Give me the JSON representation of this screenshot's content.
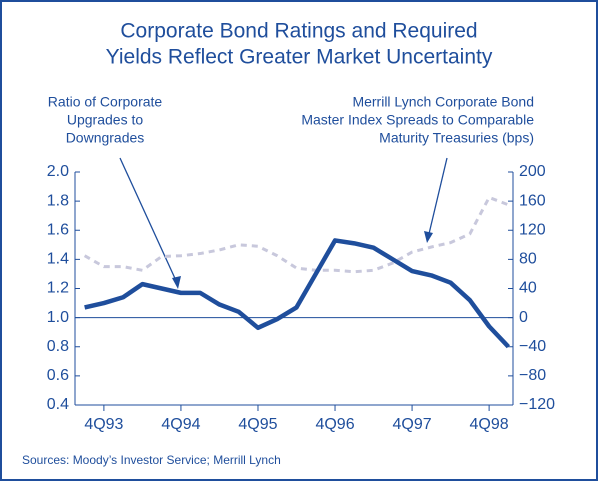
{
  "chart_data": {
    "type": "line",
    "title": [
      "Corporate Bond Ratings and Required",
      "Yields Reflect Greater Market Uncertainty"
    ],
    "annotations": [
      {
        "lines": [
          "Ratio of Corporate",
          "Upgrades to",
          "Downgrades"
        ]
      },
      {
        "lines": [
          "Merrill Lynch Corporate Bond",
          "Master Index Spreads to Comparable",
          "Maturity Treasuries (bps)"
        ]
      }
    ],
    "source": "Sources: Moody’s Investor Service; Merrill Lynch",
    "x": [
      1993.5,
      1993.75,
      1994.0,
      1994.25,
      1994.5,
      1994.75,
      1995.0,
      1995.25,
      1995.5,
      1995.75,
      1996.0,
      1996.25,
      1996.5,
      1996.75,
      1997.0,
      1997.25,
      1997.5,
      1997.75,
      1998.0,
      1998.25,
      1998.5,
      1998.75,
      1999.0
    ],
    "series": [
      {
        "name": "Ratio of Corporate Upgrades to Downgrades",
        "color": "#1f4e9c",
        "axis": "y",
        "values": [
          1.07,
          1.1,
          1.14,
          1.23,
          1.2,
          1.17,
          1.17,
          1.09,
          1.04,
          0.93,
          0.99,
          1.07,
          1.3,
          1.53,
          1.51,
          1.48,
          1.4,
          1.32,
          1.29,
          1.24,
          1.12,
          0.94,
          0.8
        ]
      },
      {
        "name": "Merrill Lynch Corporate Bond Master Index Spreads to Comparable Maturity Treasuries (bps)",
        "color": "#c8c8dc",
        "axis": "y2",
        "values": [
          85,
          70,
          70,
          65,
          84,
          85,
          88,
          93,
          100,
          98,
          85,
          68,
          65,
          65,
          63,
          65,
          75,
          90,
          97,
          103,
          115,
          165,
          155
        ]
      }
    ],
    "xlim": [
      1993.375,
      1999.06
    ],
    "xticks": [
      {
        "value": 1993.75,
        "label": "4Q93"
      },
      {
        "value": 1994.75,
        "label": "4Q94"
      },
      {
        "value": 1995.75,
        "label": "4Q95"
      },
      {
        "value": 1996.75,
        "label": "4Q96"
      },
      {
        "value": 1997.75,
        "label": "4Q97"
      },
      {
        "value": 1998.75,
        "label": "4Q98"
      }
    ],
    "ylim": [
      0.4,
      2.0
    ],
    "yticks": [
      {
        "value": 2.0,
        "label": "2.0"
      },
      {
        "value": 1.8,
        "label": "1.8"
      },
      {
        "value": 1.6,
        "label": "1.6"
      },
      {
        "value": 1.4,
        "label": "1.4"
      },
      {
        "value": 1.2,
        "label": "1.2"
      },
      {
        "value": 1.0,
        "label": "1.0"
      },
      {
        "value": 0.8,
        "label": "0.8"
      },
      {
        "value": 0.6,
        "label": "0.6"
      },
      {
        "value": 0.4,
        "label": "0.4"
      }
    ],
    "y2lim": [
      -120,
      200
    ],
    "y2ticks": [
      200,
      160,
      120,
      80,
      40,
      0,
      {
        "value": -40,
        "label": "−40"
      },
      {
        "value": -80,
        "label": "−80"
      },
      {
        "value": -120,
        "label": "−120"
      }
    ],
    "reference_line": 1.0
  }
}
